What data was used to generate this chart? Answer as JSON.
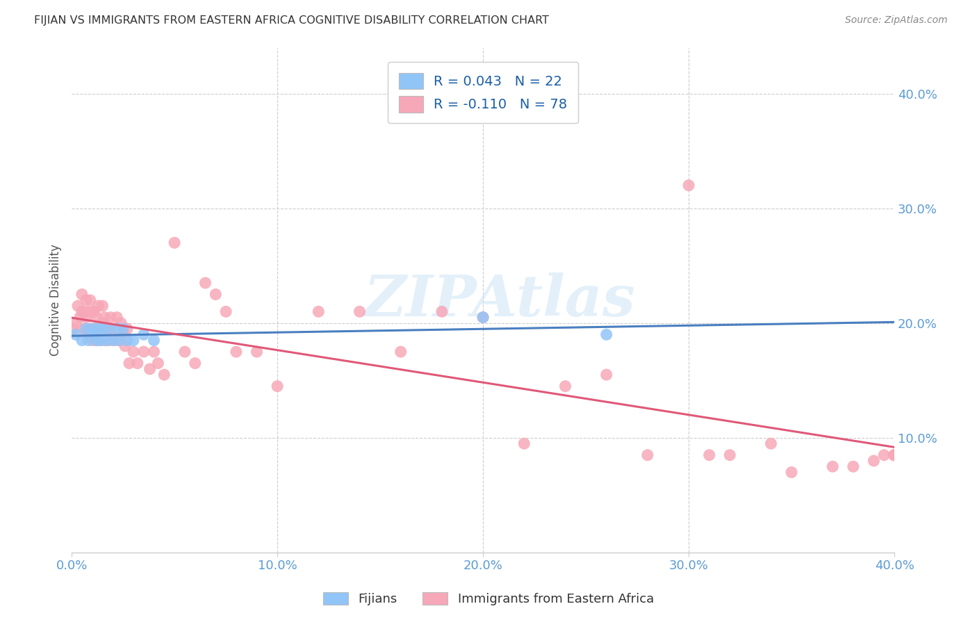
{
  "title": "FIJIAN VS IMMIGRANTS FROM EASTERN AFRICA COGNITIVE DISABILITY CORRELATION CHART",
  "source": "Source: ZipAtlas.com",
  "ylabel": "Cognitive Disability",
  "xlim": [
    0.0,
    0.4
  ],
  "ylim": [
    0.0,
    0.44
  ],
  "xticks": [
    0.0,
    0.1,
    0.2,
    0.3,
    0.4
  ],
  "yticks": [
    0.1,
    0.2,
    0.3,
    0.4
  ],
  "ytick_labels": [
    "10.0%",
    "20.0%",
    "30.0%",
    "40.0%"
  ],
  "xtick_labels": [
    "0.0%",
    "10.0%",
    "20.0%",
    "30.0%",
    "40.0%"
  ],
  "fijian_color": "#92c5f7",
  "eastern_africa_color": "#f7a8b8",
  "fijian_line_color": "#4a7fc1",
  "eastern_line_color": "#e05878",
  "fijian_R": 0.043,
  "fijian_N": 22,
  "eastern_africa_R": -0.11,
  "eastern_africa_N": 78,
  "legend_label_fijian": "Fijians",
  "legend_label_eastern": "Immigrants from Eastern Africa",
  "watermark_text": "ZIPAtlas",
  "fijian_x": [
    0.002,
    0.005,
    0.007,
    0.008,
    0.01,
    0.011,
    0.012,
    0.013,
    0.014,
    0.015,
    0.017,
    0.018,
    0.02,
    0.022,
    0.023,
    0.025,
    0.027,
    0.03,
    0.035,
    0.04,
    0.2,
    0.26
  ],
  "fijian_y": [
    0.19,
    0.185,
    0.195,
    0.185,
    0.195,
    0.19,
    0.185,
    0.195,
    0.185,
    0.195,
    0.185,
    0.195,
    0.185,
    0.195,
    0.185,
    0.195,
    0.185,
    0.185,
    0.19,
    0.185,
    0.205,
    0.19
  ],
  "eastern_x": [
    0.001,
    0.002,
    0.003,
    0.004,
    0.005,
    0.005,
    0.006,
    0.006,
    0.007,
    0.007,
    0.008,
    0.008,
    0.009,
    0.009,
    0.01,
    0.01,
    0.011,
    0.011,
    0.012,
    0.012,
    0.013,
    0.013,
    0.014,
    0.015,
    0.015,
    0.016,
    0.016,
    0.017,
    0.018,
    0.019,
    0.02,
    0.021,
    0.022,
    0.023,
    0.024,
    0.025,
    0.026,
    0.027,
    0.028,
    0.03,
    0.032,
    0.035,
    0.038,
    0.04,
    0.042,
    0.045,
    0.05,
    0.055,
    0.06,
    0.065,
    0.07,
    0.075,
    0.08,
    0.09,
    0.1,
    0.12,
    0.14,
    0.16,
    0.18,
    0.2,
    0.22,
    0.24,
    0.26,
    0.28,
    0.3,
    0.31,
    0.32,
    0.34,
    0.35,
    0.37,
    0.38,
    0.39,
    0.395,
    0.4,
    0.4,
    0.4,
    0.4,
    0.4
  ],
  "eastern_y": [
    0.195,
    0.2,
    0.215,
    0.205,
    0.21,
    0.225,
    0.195,
    0.21,
    0.205,
    0.22,
    0.19,
    0.21,
    0.195,
    0.22,
    0.185,
    0.21,
    0.195,
    0.21,
    0.185,
    0.205,
    0.195,
    0.215,
    0.185,
    0.2,
    0.215,
    0.185,
    0.205,
    0.195,
    0.185,
    0.205,
    0.195,
    0.185,
    0.205,
    0.185,
    0.2,
    0.19,
    0.18,
    0.195,
    0.165,
    0.175,
    0.165,
    0.175,
    0.16,
    0.175,
    0.165,
    0.155,
    0.27,
    0.175,
    0.165,
    0.235,
    0.225,
    0.21,
    0.175,
    0.175,
    0.145,
    0.21,
    0.21,
    0.175,
    0.21,
    0.205,
    0.095,
    0.145,
    0.155,
    0.085,
    0.32,
    0.085,
    0.085,
    0.095,
    0.07,
    0.075,
    0.075,
    0.08,
    0.085,
    0.085,
    0.085,
    0.085,
    0.085,
    0.085
  ]
}
